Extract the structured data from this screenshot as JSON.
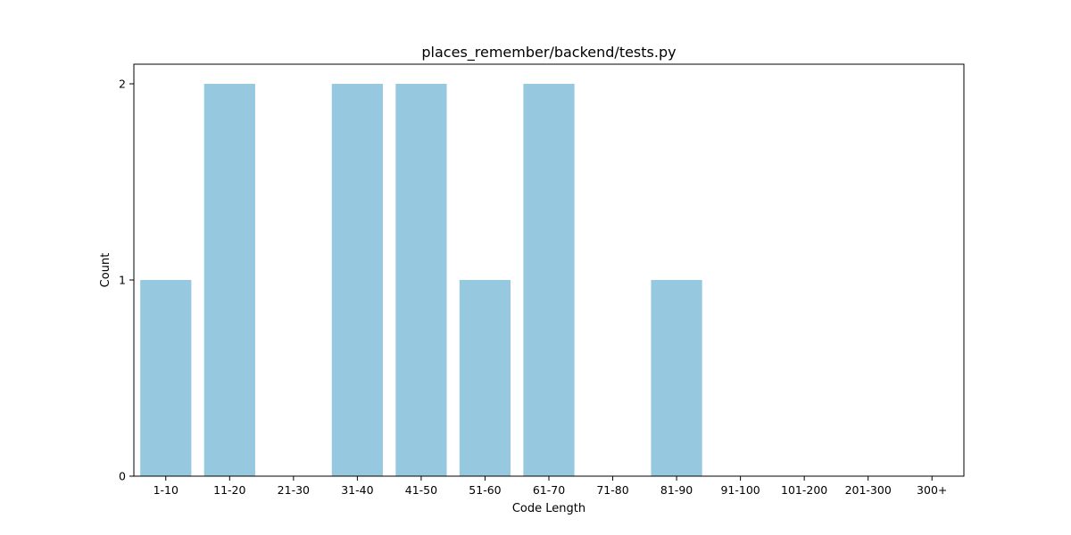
{
  "chart_data": {
    "type": "bar",
    "title": "places_remember/backend/tests.py",
    "xlabel": "Code Length",
    "ylabel": "Count",
    "categories": [
      "1-10",
      "11-20",
      "21-30",
      "31-40",
      "41-50",
      "51-60",
      "61-70",
      "71-80",
      "81-90",
      "91-100",
      "101-200",
      "201-300",
      "300+"
    ],
    "values": [
      1,
      2,
      0,
      2,
      2,
      1,
      2,
      0,
      1,
      0,
      0,
      0,
      0
    ],
    "ylim": [
      0,
      2.1
    ],
    "yticks": [
      0,
      1,
      2
    ],
    "grid": false,
    "legend": "none",
    "bar_color": "#96c9df"
  }
}
